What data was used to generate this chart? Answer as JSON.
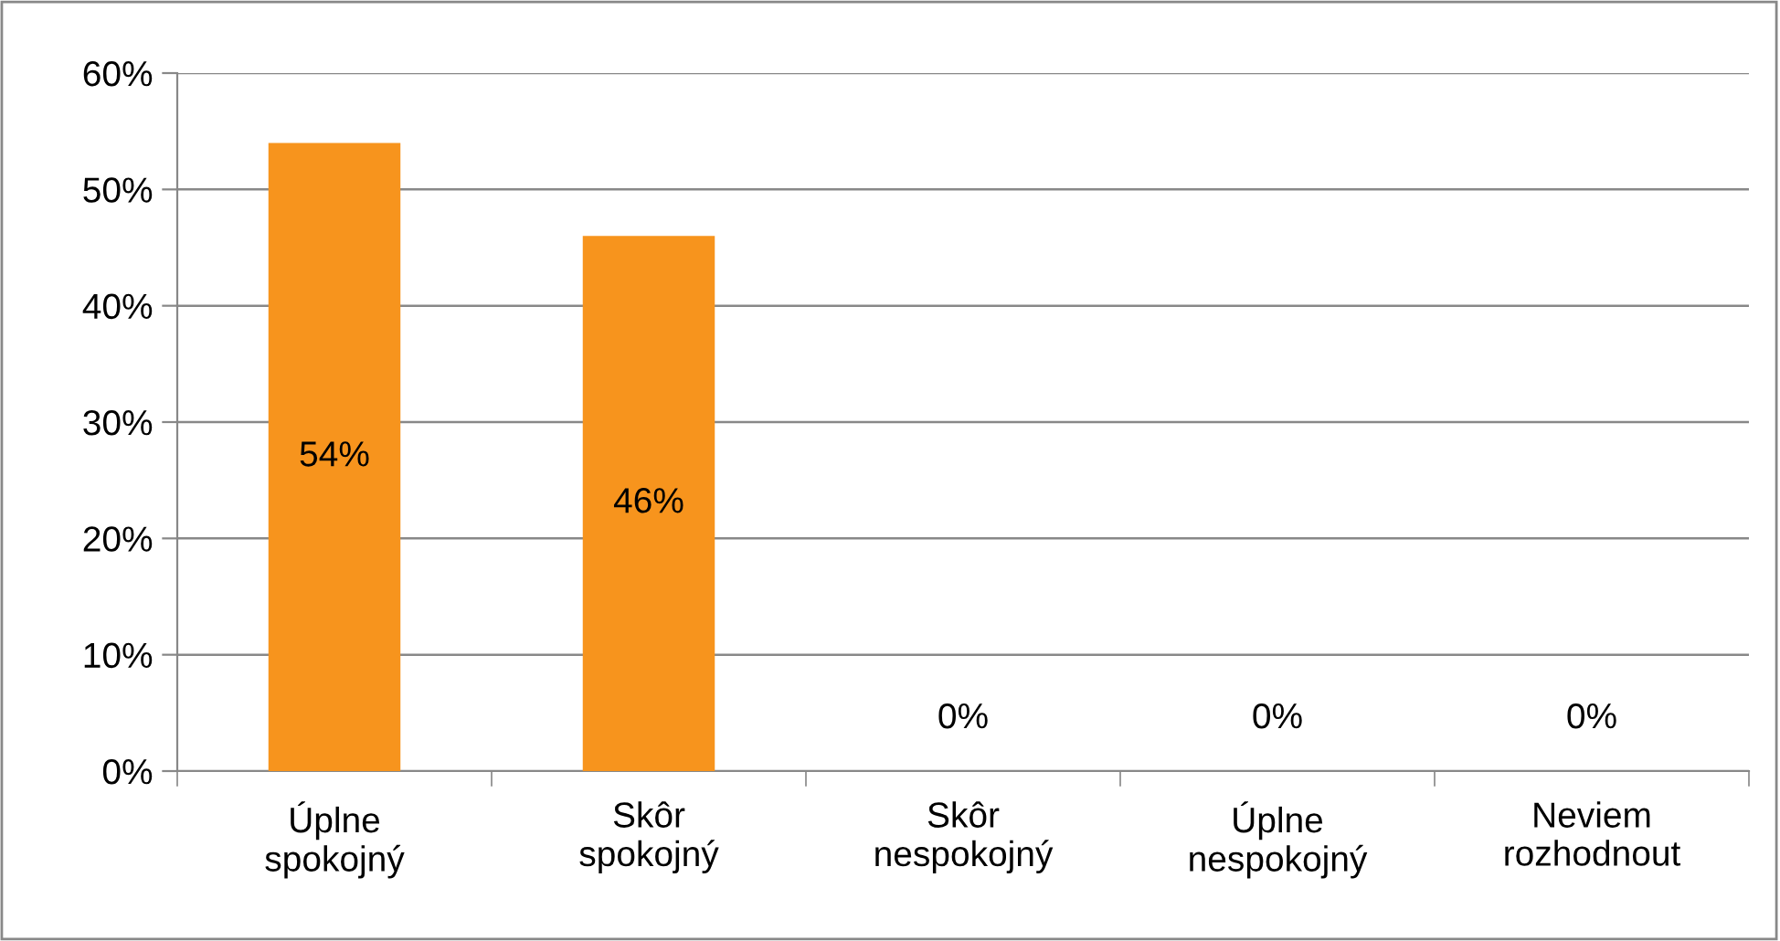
{
  "chart_data": {
    "type": "bar",
    "categories": [
      "Úplne\nspokojný",
      "Skôr\nspokojný",
      "Skôr\nnespokojný",
      "Úplne\nnespokojný",
      "Neviem\nrozhodnout"
    ],
    "values": [
      54,
      46,
      0,
      0,
      0
    ],
    "value_labels": [
      "54%",
      "46%",
      "0%",
      "0%",
      "0%"
    ],
    "color": "#f7941d",
    "ylim": [
      0,
      60
    ],
    "yticks": [
      {
        "value": 0,
        "label": "0%"
      },
      {
        "value": 10,
        "label": "10%"
      },
      {
        "value": 20,
        "label": "20%"
      },
      {
        "value": 30,
        "label": "30%"
      },
      {
        "value": 40,
        "label": "40%"
      },
      {
        "value": 50,
        "label": "50%"
      },
      {
        "value": 60,
        "label": "60%"
      }
    ],
    "grid": "y"
  }
}
